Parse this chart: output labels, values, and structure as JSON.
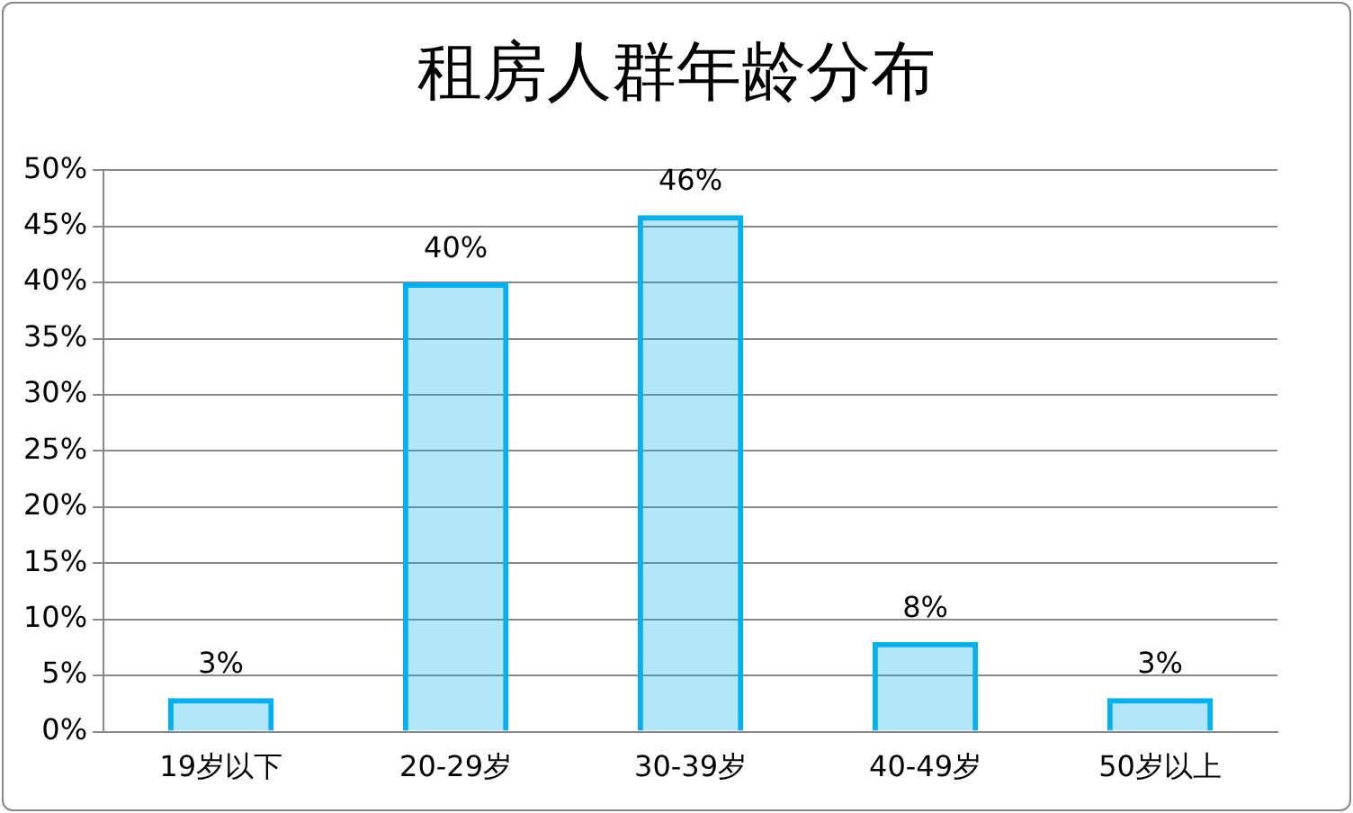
{
  "chart_data": {
    "type": "bar",
    "title": "租房人群年龄分布",
    "categories": [
      "19岁以下",
      "20-29岁",
      "30-39岁",
      "40-49岁",
      "50岁以上"
    ],
    "values": [
      3,
      40,
      46,
      8,
      3
    ],
    "value_labels": [
      "3%",
      "40%",
      "46%",
      "8%",
      "3%"
    ],
    "color": "#00b0f0",
    "ylim": [
      0,
      50
    ],
    "yticks": [
      {
        "value": 0,
        "label": "0%"
      },
      {
        "value": 5,
        "label": "5%"
      },
      {
        "value": 10,
        "label": "10%"
      },
      {
        "value": 15,
        "label": "15%"
      },
      {
        "value": 20,
        "label": "20%"
      },
      {
        "value": 25,
        "label": "25%"
      },
      {
        "value": 30,
        "label": "30%"
      },
      {
        "value": 35,
        "label": "35%"
      },
      {
        "value": 40,
        "label": "40%"
      },
      {
        "value": 45,
        "label": "45%"
      },
      {
        "value": 50,
        "label": "50%"
      }
    ],
    "grid": "y",
    "legend": false
  }
}
